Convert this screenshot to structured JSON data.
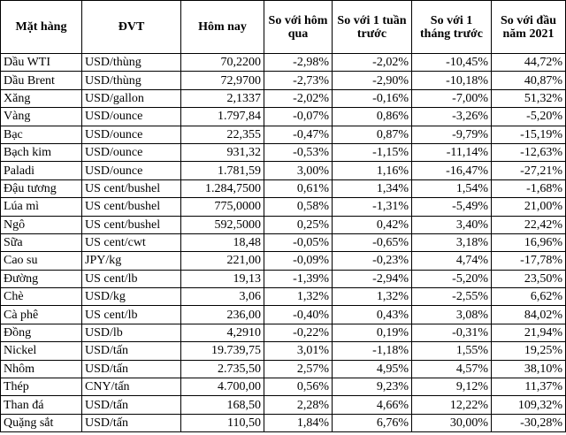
{
  "table": {
    "header": [
      "Mặt hàng",
      "ĐVT",
      "Hôm nay",
      "So với hôm qua",
      "So với 1 tuần trước",
      "So với 1 tháng trước",
      "So với đầu năm 2021"
    ],
    "rows": [
      [
        "Dầu WTI",
        "USD/thùng",
        "70,2200",
        "-2,98%",
        "-2,02%",
        "-10,45%",
        "44,72%"
      ],
      [
        "Dầu Brent",
        "USD/thùng",
        "72,9700",
        "-2,73%",
        "-2,90%",
        "-10,18%",
        "40,87%"
      ],
      [
        "Xăng",
        "USD/gallon",
        "2,1337",
        "-2,02%",
        "-0,16%",
        "-7,00%",
        "51,32%"
      ],
      [
        "Vàng",
        "USD/ounce",
        "1.797,84",
        "-0,07%",
        "0,86%",
        "-3,26%",
        "-5,20%"
      ],
      [
        "Bạc",
        "USD/ounce",
        "22,355",
        "-0,47%",
        "0,87%",
        "-9,79%",
        "-15,19%"
      ],
      [
        "Bạch kim",
        "USD/ounce",
        "931,32",
        "-0,53%",
        "-1,15%",
        "-11,14%",
        "-12,63%"
      ],
      [
        "Paladi",
        "USD/ounce",
        "1.781,59",
        "3,00%",
        "1,16%",
        "-16,47%",
        "-27,21%"
      ],
      [
        "Đậu tương",
        "US cent/bushel",
        "1.284,7500",
        "0,61%",
        "1,34%",
        "1,54%",
        "-1,68%"
      ],
      [
        "Lúa mì",
        "US cent/bushel",
        "775,0000",
        "0,58%",
        "-1,31%",
        "-5,49%",
        "21,00%"
      ],
      [
        "Ngô",
        "US cent/bushel",
        "592,5000",
        "0,25%",
        "0,42%",
        "3,40%",
        "22,42%"
      ],
      [
        "Sữa",
        "US cent/cwt",
        "18,48",
        "-0,05%",
        "-0,65%",
        "3,18%",
        "16,96%"
      ],
      [
        "Cao su",
        "JPY/kg",
        "221,00",
        "-0,09%",
        "-0,23%",
        "4,74%",
        "-17,78%"
      ],
      [
        "Đường",
        "US cent/lb",
        "19,13",
        "-1,39%",
        "-2,94%",
        "-5,20%",
        "23,50%"
      ],
      [
        "Chè",
        "USD/kg",
        "3,06",
        "1,32%",
        "1,32%",
        "-2,55%",
        "6,62%"
      ],
      [
        "Cà phê",
        "US cent/lb",
        "236,00",
        "-0,40%",
        "0,43%",
        "3,08%",
        "84,02%"
      ],
      [
        "Đồng",
        "USD/lb",
        "4,2910",
        "-0,22%",
        "0,19%",
        "-0,31%",
        "21,94%"
      ],
      [
        "Nickel",
        "USD/tấn",
        "19.739,75",
        "3,01%",
        "-1,18%",
        "1,55%",
        "19,25%"
      ],
      [
        "Nhôm",
        "USD/tấn",
        "2.735,50",
        "2,57%",
        "4,95%",
        "4,57%",
        "38,10%"
      ],
      [
        "Thép",
        "CNY/tấn",
        "4.700,00",
        "0,56%",
        "9,23%",
        "9,12%",
        "11,37%"
      ],
      [
        "Than đá",
        "USD/tấn",
        "168,50",
        "2,28%",
        "4,66%",
        "12,22%",
        "109,32%"
      ],
      [
        "Quặng sắt",
        "USD/tấn",
        "110,50",
        "1,84%",
        "6,76%",
        "30,00%",
        "-30,28%"
      ]
    ]
  }
}
